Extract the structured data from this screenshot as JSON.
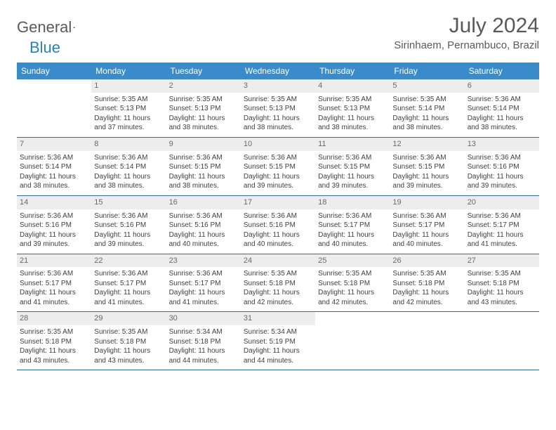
{
  "brand": {
    "word1": "General",
    "word2": "Blue"
  },
  "title": "July 2024",
  "location": "Sirinhaem, Pernambuco, Brazil",
  "colors": {
    "header_bg": "#3a8bc9",
    "header_text": "#ffffff",
    "daynum_bg": "#ededed",
    "daynum_text": "#6a6a6a",
    "row_border": "#2a6fa8",
    "body_text": "#404040",
    "title_text": "#595959",
    "brand_gray": "#5a5a5a",
    "brand_blue": "#2a7fbf"
  },
  "weekdays": [
    "Sunday",
    "Monday",
    "Tuesday",
    "Wednesday",
    "Thursday",
    "Friday",
    "Saturday"
  ],
  "weeks": [
    [
      null,
      {
        "d": "1",
        "sr": "5:35 AM",
        "ss": "5:13 PM",
        "dl": "11 hours and 37 minutes."
      },
      {
        "d": "2",
        "sr": "5:35 AM",
        "ss": "5:13 PM",
        "dl": "11 hours and 38 minutes."
      },
      {
        "d": "3",
        "sr": "5:35 AM",
        "ss": "5:13 PM",
        "dl": "11 hours and 38 minutes."
      },
      {
        "d": "4",
        "sr": "5:35 AM",
        "ss": "5:13 PM",
        "dl": "11 hours and 38 minutes."
      },
      {
        "d": "5",
        "sr": "5:35 AM",
        "ss": "5:14 PM",
        "dl": "11 hours and 38 minutes."
      },
      {
        "d": "6",
        "sr": "5:36 AM",
        "ss": "5:14 PM",
        "dl": "11 hours and 38 minutes."
      }
    ],
    [
      {
        "d": "7",
        "sr": "5:36 AM",
        "ss": "5:14 PM",
        "dl": "11 hours and 38 minutes."
      },
      {
        "d": "8",
        "sr": "5:36 AM",
        "ss": "5:14 PM",
        "dl": "11 hours and 38 minutes."
      },
      {
        "d": "9",
        "sr": "5:36 AM",
        "ss": "5:15 PM",
        "dl": "11 hours and 38 minutes."
      },
      {
        "d": "10",
        "sr": "5:36 AM",
        "ss": "5:15 PM",
        "dl": "11 hours and 39 minutes."
      },
      {
        "d": "11",
        "sr": "5:36 AM",
        "ss": "5:15 PM",
        "dl": "11 hours and 39 minutes."
      },
      {
        "d": "12",
        "sr": "5:36 AM",
        "ss": "5:15 PM",
        "dl": "11 hours and 39 minutes."
      },
      {
        "d": "13",
        "sr": "5:36 AM",
        "ss": "5:16 PM",
        "dl": "11 hours and 39 minutes."
      }
    ],
    [
      {
        "d": "14",
        "sr": "5:36 AM",
        "ss": "5:16 PM",
        "dl": "11 hours and 39 minutes."
      },
      {
        "d": "15",
        "sr": "5:36 AM",
        "ss": "5:16 PM",
        "dl": "11 hours and 39 minutes."
      },
      {
        "d": "16",
        "sr": "5:36 AM",
        "ss": "5:16 PM",
        "dl": "11 hours and 40 minutes."
      },
      {
        "d": "17",
        "sr": "5:36 AM",
        "ss": "5:16 PM",
        "dl": "11 hours and 40 minutes."
      },
      {
        "d": "18",
        "sr": "5:36 AM",
        "ss": "5:17 PM",
        "dl": "11 hours and 40 minutes."
      },
      {
        "d": "19",
        "sr": "5:36 AM",
        "ss": "5:17 PM",
        "dl": "11 hours and 40 minutes."
      },
      {
        "d": "20",
        "sr": "5:36 AM",
        "ss": "5:17 PM",
        "dl": "11 hours and 41 minutes."
      }
    ],
    [
      {
        "d": "21",
        "sr": "5:36 AM",
        "ss": "5:17 PM",
        "dl": "11 hours and 41 minutes."
      },
      {
        "d": "22",
        "sr": "5:36 AM",
        "ss": "5:17 PM",
        "dl": "11 hours and 41 minutes."
      },
      {
        "d": "23",
        "sr": "5:36 AM",
        "ss": "5:17 PM",
        "dl": "11 hours and 41 minutes."
      },
      {
        "d": "24",
        "sr": "5:35 AM",
        "ss": "5:18 PM",
        "dl": "11 hours and 42 minutes."
      },
      {
        "d": "25",
        "sr": "5:35 AM",
        "ss": "5:18 PM",
        "dl": "11 hours and 42 minutes."
      },
      {
        "d": "26",
        "sr": "5:35 AM",
        "ss": "5:18 PM",
        "dl": "11 hours and 42 minutes."
      },
      {
        "d": "27",
        "sr": "5:35 AM",
        "ss": "5:18 PM",
        "dl": "11 hours and 43 minutes."
      }
    ],
    [
      {
        "d": "28",
        "sr": "5:35 AM",
        "ss": "5:18 PM",
        "dl": "11 hours and 43 minutes."
      },
      {
        "d": "29",
        "sr": "5:35 AM",
        "ss": "5:18 PM",
        "dl": "11 hours and 43 minutes."
      },
      {
        "d": "30",
        "sr": "5:34 AM",
        "ss": "5:18 PM",
        "dl": "11 hours and 44 minutes."
      },
      {
        "d": "31",
        "sr": "5:34 AM",
        "ss": "5:19 PM",
        "dl": "11 hours and 44 minutes."
      },
      null,
      null,
      null
    ]
  ],
  "labels": {
    "sunrise": "Sunrise:",
    "sunset": "Sunset:",
    "daylight": "Daylight:"
  }
}
